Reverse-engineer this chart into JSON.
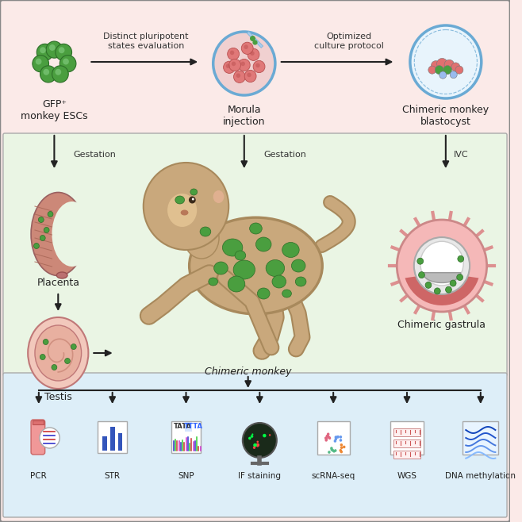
{
  "bg_top": "#fbeae8",
  "bg_mid": "#eaf5e4",
  "bg_bot": "#ddeef8",
  "green_cell": "#4a9e3f",
  "green_light": "#7ec87a",
  "green_dark": "#2d6e28",
  "pink_cell": "#e07070",
  "blue_outline": "#6aaad4",
  "arrow_color": "#222222",
  "monkey_body": "#c9a87c",
  "monkey_dark": "#a8895c",
  "monkey_face": "#e0c090",
  "label_esc": "GFP⁺\nmonkey ESCs",
  "label_morula": "Morula\ninjection",
  "label_blasto": "Chimeric monkey\nblastocyst",
  "label_placenta": "Placenta",
  "label_testis": "Testis",
  "label_chimeric": "Chimeric monkey",
  "label_gastrula": "Chimeric gastrula",
  "arrow1_label": "Distinct pluripotent\nstates evaluation",
  "arrow2_label": "Optimized\nculture protocol",
  "label_gestation1": "Gestation",
  "label_gestation2": "Gestation",
  "label_ivc": "IVC",
  "methods": [
    "PCR",
    "STR",
    "SNP",
    "IF staining",
    "scRNA-seq",
    "WGS",
    "DNA methylation"
  ],
  "font_size": 8,
  "font_size_label": 9
}
